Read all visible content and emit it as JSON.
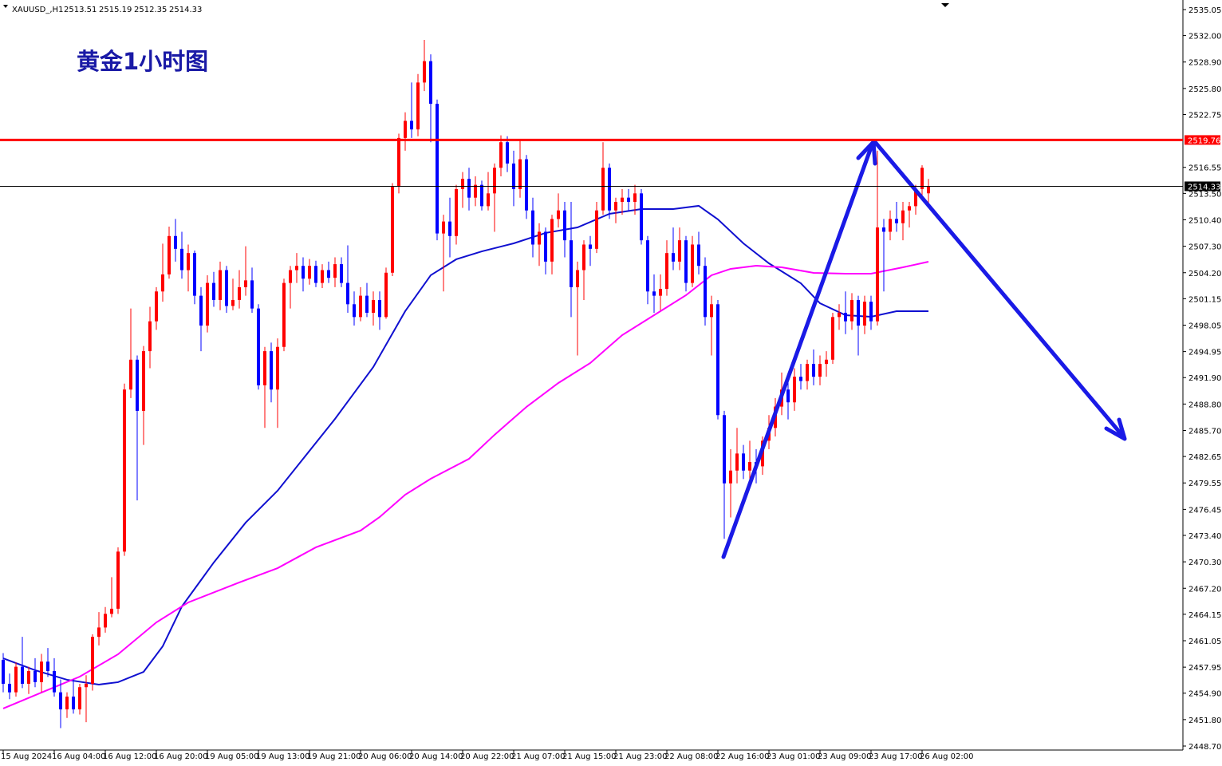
{
  "chart_data": {
    "type": "candlestick",
    "symbol": "XAUUSD_,H1",
    "ohlc_header": [
      2513.51,
      2515.19,
      2512.35,
      2514.33
    ],
    "title": "黄金1小时图",
    "up_color": "#ff0000",
    "down_color": "#0000ff",
    "ylim": [
      2448.7,
      2535.05
    ],
    "xlim": [
      -0.5,
      184.875
    ],
    "yticks": [
      {
        "value": 2535.05,
        "label": "2535.05"
      },
      {
        "value": 2532.0,
        "label": "2532.00"
      },
      {
        "value": 2528.9,
        "label": "2528.90"
      },
      {
        "value": 2525.8,
        "label": "2525.80"
      },
      {
        "value": 2522.75,
        "label": "2522.75"
      },
      {
        "value": 2516.55,
        "label": "2516.55"
      },
      {
        "value": 2513.5,
        "label": "2513.50"
      },
      {
        "value": 2510.4,
        "label": "2510.40"
      },
      {
        "value": 2507.3,
        "label": "2507.30"
      },
      {
        "value": 2504.2,
        "label": "2504.20"
      },
      {
        "value": 2501.15,
        "label": "2501.15"
      },
      {
        "value": 2498.05,
        "label": "2498.05"
      },
      {
        "value": 2494.95,
        "label": "2494.95"
      },
      {
        "value": 2491.9,
        "label": "2491.90"
      },
      {
        "value": 2488.8,
        "label": "2488.80"
      },
      {
        "value": 2485.7,
        "label": "2485.70"
      },
      {
        "value": 2482.65,
        "label": "2482.65"
      },
      {
        "value": 2479.55,
        "label": "2479.55"
      },
      {
        "value": 2476.45,
        "label": "2476.45"
      },
      {
        "value": 2473.4,
        "label": "2473.40"
      },
      {
        "value": 2470.3,
        "label": "2470.30"
      },
      {
        "value": 2467.2,
        "label": "2467.20"
      },
      {
        "value": 2464.15,
        "label": "2464.15"
      },
      {
        "value": 2461.05,
        "label": "2461.05"
      },
      {
        "value": 2457.95,
        "label": "2457.95"
      },
      {
        "value": 2454.9,
        "label": "2454.90"
      },
      {
        "value": 2451.8,
        "label": "2451.80"
      },
      {
        "value": 2448.7,
        "label": "2448.70"
      }
    ],
    "xticks": [
      {
        "value": 0,
        "label": "15 Aug 2024"
      },
      {
        "value": 8,
        "label": "16 Aug 04:00"
      },
      {
        "value": 16,
        "label": "16 Aug 12:00"
      },
      {
        "value": 24,
        "label": "16 Aug 20:00"
      },
      {
        "value": 32,
        "label": "19 Aug 05:00"
      },
      {
        "value": 40,
        "label": "19 Aug 13:00"
      },
      {
        "value": 48,
        "label": "19 Aug 21:00"
      },
      {
        "value": 56,
        "label": "20 Aug 06:00"
      },
      {
        "value": 64,
        "label": "20 Aug 14:00"
      },
      {
        "value": 72,
        "label": "20 Aug 22:00"
      },
      {
        "value": 80,
        "label": "21 Aug 07:00"
      },
      {
        "value": 88,
        "label": "21 Aug 15:00"
      },
      {
        "value": 96,
        "label": "21 Aug 23:00"
      },
      {
        "value": 104,
        "label": "22 Aug 08:00"
      },
      {
        "value": 112,
        "label": "22 Aug 16:00"
      },
      {
        "value": 120,
        "label": "23 Aug 01:00"
      },
      {
        "value": 128,
        "label": "23 Aug 09:00"
      },
      {
        "value": 136,
        "label": "23 Aug 17:00"
      },
      {
        "value": 144,
        "label": "26 Aug 02:00"
      }
    ],
    "levels": [
      {
        "value": 2519.76,
        "color": "#ff0000"
      },
      {
        "value": 2514.33,
        "color": "#000000"
      }
    ],
    "candles": [
      [
        2458.8,
        2459.6,
        2455,
        2456.0
      ],
      [
        2456.0,
        2457.2,
        2454.2,
        2455.0
      ],
      [
        2455.0,
        2458.5,
        2454.5,
        2458.0
      ],
      [
        2458.0,
        2461.5,
        2455.5,
        2456.0
      ],
      [
        2456.0,
        2458,
        2454.8,
        2457.5
      ],
      [
        2457.5,
        2459.0,
        2455.6,
        2456.2
      ],
      [
        2456.2,
        2459.5,
        2455.0,
        2458.6
      ],
      [
        2458.6,
        2460.2,
        2456.8,
        2457.5
      ],
      [
        2457.5,
        2459,
        2454.5,
        2455.0
      ],
      [
        2455.0,
        2456.5,
        2450.8,
        2453.0
      ],
      [
        2453.0,
        2455.0,
        2452.0,
        2454.5
      ],
      [
        2454.5,
        2456.5,
        2452.5,
        2453.0
      ],
      [
        2453.0,
        2456.0,
        2452.4,
        2455.6
      ],
      [
        2455.6,
        2457.0,
        2451.5,
        2456.0
      ],
      [
        2456.0,
        2461.8,
        2455.2,
        2461.5
      ],
      [
        2461.5,
        2464.4,
        2460.5,
        2462.6
      ],
      [
        2462.6,
        2465.0,
        2462,
        2464.2
      ],
      [
        2464.2,
        2468.5,
        2463.8,
        2464.8
      ],
      [
        2464.8,
        2472,
        2464.2,
        2471.5
      ],
      [
        2471.5,
        2491.2,
        2471,
        2490.5
      ],
      [
        2490.5,
        2500.0,
        2489.5,
        2494.0
      ],
      [
        2494.0,
        2494.5,
        2477.5,
        2488.0
      ],
      [
        2488.0,
        2495.6,
        2484,
        2495.0
      ],
      [
        2495.0,
        2500.2,
        2493,
        2498.5
      ],
      [
        2498.5,
        2502.5,
        2497.5,
        2502.0
      ],
      [
        2502.0,
        2507.6,
        2500.8,
        2504.0
      ],
      [
        2504.0,
        2509.6,
        2503.5,
        2508.5
      ],
      [
        2508.5,
        2510.5,
        2505.5,
        2507.0
      ],
      [
        2507.0,
        2509.0,
        2503.5,
        2504.5
      ],
      [
        2504.5,
        2507.5,
        2502,
        2506.5
      ],
      [
        2506.5,
        2506.8,
        2500.5,
        2501.5
      ],
      [
        2501.5,
        2502.5,
        2495.0,
        2498.0
      ],
      [
        2498.0,
        2503.9,
        2497.2,
        2503.0
      ],
      [
        2503.0,
        2504.3,
        2500.2,
        2501.0
      ],
      [
        2501.0,
        2505.5,
        2499.8,
        2504.5
      ],
      [
        2504.5,
        2505.0,
        2499.5,
        2500.3
      ],
      [
        2500.3,
        2503.5,
        2499.8,
        2501.0
      ],
      [
        2501.0,
        2504.5,
        2500.0,
        2502.5
      ],
      [
        2502.5,
        2507.3,
        2501.5,
        2503.3
      ],
      [
        2503.3,
        2504.8,
        2499.5,
        2500.0
      ],
      [
        2500.0,
        2500.5,
        2490.5,
        2491.0
      ],
      [
        2491.0,
        2495.5,
        2486.0,
        2495.0
      ],
      [
        2495.0,
        2496.0,
        2489,
        2490.5
      ],
      [
        2490.5,
        2496.5,
        2486.0,
        2495.5
      ],
      [
        2495.5,
        2503.5,
        2495,
        2503.0
      ],
      [
        2503.0,
        2505.0,
        2500.0,
        2504.5
      ],
      [
        2504.5,
        2506.5,
        2503,
        2505.0
      ],
      [
        2505.0,
        2506.0,
        2502.0,
        2503.5
      ],
      [
        2503.5,
        2505.8,
        2502.8,
        2505.0
      ],
      [
        2505.0,
        2505.6,
        2502.5,
        2503.0
      ],
      [
        2503.0,
        2505.2,
        2502.4,
        2504.5
      ],
      [
        2504.5,
        2505.5,
        2503.0,
        2503.6
      ],
      [
        2503.6,
        2506.0,
        2502.5,
        2505.2
      ],
      [
        2505.2,
        2506.0,
        2502.5,
        2503.0
      ],
      [
        2503.0,
        2507.4,
        2499.5,
        2500.5
      ],
      [
        2500.5,
        2502.0,
        2498.0,
        2499.0
      ],
      [
        2499.0,
        2502.5,
        2498.5,
        2501.5
      ],
      [
        2501.5,
        2503.0,
        2499.0,
        2499.5
      ],
      [
        2499.5,
        2502.0,
        2498.0,
        2501.0
      ],
      [
        2501.0,
        2502.0,
        2497.5,
        2499.0
      ],
      [
        2499.0,
        2504.8,
        2498.8,
        2504.2
      ],
      [
        2504.2,
        2514.7,
        2503.8,
        2514.3
      ],
      [
        2514.3,
        2520.5,
        2513.5,
        2520.0
      ],
      [
        2520.0,
        2523.0,
        2518.5,
        2522.0
      ],
      [
        2522.0,
        2526.5,
        2520.0,
        2521.0
      ],
      [
        2521.0,
        2527.5,
        2520.2,
        2526.5
      ],
      [
        2526.5,
        2531.5,
        2525.5,
        2529.0
      ],
      [
        2529.0,
        2529.8,
        2519.5,
        2524.0
      ],
      [
        2524.0,
        2524.5,
        2508.0,
        2508.8
      ],
      [
        2508.8,
        2511,
        2502.0,
        2510.2
      ],
      [
        2510.2,
        2513.0,
        2506.0,
        2508.5
      ],
      [
        2508.5,
        2514.5,
        2507.5,
        2514.0
      ],
      [
        2514.0,
        2516.0,
        2511.8,
        2515.2
      ],
      [
        2515.2,
        2516.5,
        2511.5,
        2513.0
      ],
      [
        2513.0,
        2515.5,
        2512.0,
        2514.5
      ],
      [
        2514.5,
        2515.0,
        2511.5,
        2512.0
      ],
      [
        2512.0,
        2516.0,
        2511.5,
        2513.5
      ],
      [
        2513.5,
        2517.0,
        2509.0,
        2516.5
      ],
      [
        2516.5,
        2520.3,
        2515.5,
        2519.5
      ],
      [
        2519.5,
        2520.2,
        2516.0,
        2517.0
      ],
      [
        2517.0,
        2518.5,
        2512.0,
        2514.0
      ],
      [
        2514.0,
        2519.8,
        2513.0,
        2517.5
      ],
      [
        2517.5,
        2518.0,
        2510.5,
        2511.5
      ],
      [
        2511.5,
        2513.0,
        2506.0,
        2507.5
      ],
      [
        2507.5,
        2510.0,
        2505.0,
        2509.0
      ],
      [
        2509.0,
        2509.5,
        2504.0,
        2505.5
      ],
      [
        2505.5,
        2511.0,
        2504.0,
        2510.5
      ],
      [
        2510.5,
        2513.5,
        2509.5,
        2511.5
      ],
      [
        2511.5,
        2512.5,
        2506,
        2508.0
      ],
      [
        2508.0,
        2512.5,
        2499.0,
        2502.5
      ],
      [
        2502.5,
        2505.5,
        2494.5,
        2504.5
      ],
      [
        2504.5,
        2508.0,
        2501.0,
        2507.5
      ],
      [
        2507.5,
        2508.5,
        2505.0,
        2507.0
      ],
      [
        2507.0,
        2512.5,
        2506.5,
        2511.5
      ],
      [
        2511.5,
        2519.5,
        2511.0,
        2516.5
      ],
      [
        2516.5,
        2517.0,
        2510.5,
        2511.5
      ],
      [
        2511.5,
        2513.0,
        2510.0,
        2512.5
      ],
      [
        2512.5,
        2514.0,
        2511.0,
        2513.0
      ],
      [
        2513.0,
        2514.0,
        2511.5,
        2512.5
      ],
      [
        2512.5,
        2514.5,
        2511.0,
        2513.5
      ],
      [
        2513.5,
        2514.0,
        2507.5,
        2508.0
      ],
      [
        2508.0,
        2508.5,
        2500.5,
        2502.0
      ],
      [
        2502.0,
        2504.0,
        2499.5,
        2501.5
      ],
      [
        2501.5,
        2504.0,
        2499.8,
        2502.3
      ],
      [
        2502.3,
        2508.0,
        2501.5,
        2506.5
      ],
      [
        2506.5,
        2509.5,
        2504.5,
        2505.5
      ],
      [
        2505.5,
        2509.5,
        2504.5,
        2508.0
      ],
      [
        2508.0,
        2508.5,
        2502.0,
        2503.0
      ],
      [
        2503.0,
        2508.5,
        2502.5,
        2507.5
      ],
      [
        2507.5,
        2509.0,
        2504.0,
        2505.0
      ],
      [
        2505.0,
        2506.0,
        2498.0,
        2499.0
      ],
      [
        2499.0,
        2501.5,
        2494.5,
        2500.5
      ],
      [
        2500.5,
        2501.0,
        2487.0,
        2487.5
      ],
      [
        2487.5,
        2488.0,
        2473.0,
        2479.5
      ],
      [
        2479.5,
        2483.5,
        2475.5,
        2481.0
      ],
      [
        2481.0,
        2486.0,
        2479.5,
        2483.0
      ],
      [
        2483.0,
        2484.0,
        2480.0,
        2481.0
      ],
      [
        2481.0,
        2484.5,
        2479.0,
        2482.0
      ],
      [
        2482.0,
        2483.5,
        2479.5,
        2481.5
      ],
      [
        2481.5,
        2485.0,
        2480.5,
        2484.5
      ],
      [
        2484.5,
        2487.5,
        2483.5,
        2486.0
      ],
      [
        2486.0,
        2489.5,
        2485.0,
        2488.5
      ],
      [
        2488.5,
        2492.5,
        2487.5,
        2490.5
      ],
      [
        2490.5,
        2492.0,
        2487.0,
        2489.0
      ],
      [
        2489.0,
        2493.0,
        2488.0,
        2492.0
      ],
      [
        2492.0,
        2493.5,
        2490.5,
        2491.5
      ],
      [
        2491.5,
        2494.0,
        2490.5,
        2493.5
      ],
      [
        2493.5,
        2495.2,
        2491.0,
        2492.0
      ],
      [
        2492.0,
        2494.5,
        2491.0,
        2493.5
      ],
      [
        2493.5,
        2495.0,
        2492.0,
        2494.0
      ],
      [
        2494.0,
        2499.5,
        2493.5,
        2499.0
      ],
      [
        2499.0,
        2500.5,
        2497.5,
        2499.5
      ],
      [
        2499.5,
        2502.0,
        2497.0,
        2498.5
      ],
      [
        2498.5,
        2501.8,
        2497.5,
        2501.0
      ],
      [
        2501.0,
        2501.5,
        2494.5,
        2498.0
      ],
      [
        2498.0,
        2501.5,
        2497.0,
        2500.8
      ],
      [
        2500.8,
        2501.5,
        2497.5,
        2498.5
      ],
      [
        2498.5,
        2518.5,
        2498.0,
        2509.5
      ],
      [
        2509.5,
        2510.5,
        2502.0,
        2509.0
      ],
      [
        2509.0,
        2511.5,
        2508.0,
        2510.5
      ],
      [
        2510.5,
        2512.5,
        2509.0,
        2510.0
      ],
      [
        2510.0,
        2512.5,
        2508.0,
        2511.5
      ],
      [
        2511.5,
        2512.5,
        2509.5,
        2512.0
      ],
      [
        2512.0,
        2514.5,
        2511.0,
        2514.0
      ],
      [
        2514.0,
        2516.8,
        2513.3,
        2516.5
      ],
      [
        2513.51,
        2515.19,
        2512.35,
        2514.33
      ]
    ],
    "series": [
      {
        "color": "#1010d0",
        "x": [
          0,
          5,
          10,
          15,
          18,
          22,
          25,
          28,
          33,
          38,
          43,
          47,
          52,
          58,
          63,
          67,
          71,
          75,
          80,
          85,
          90,
          95,
          100,
          105,
          109,
          112,
          116,
          120,
          125,
          128,
          132,
          136,
          140,
          145
        ],
        "values": [
          2458.99,
          2457.59,
          2456.47,
          2455.91,
          2456.19,
          2457.4,
          2460.4,
          2465.07,
          2470.22,
          2474.9,
          2478.64,
          2482.38,
          2487.06,
          2493.14,
          2499.69,
          2503.9,
          2505.77,
          2506.7,
          2507.64,
          2508.86,
          2509.51,
          2511.1,
          2511.66,
          2511.66,
          2512.04,
          2510.45,
          2507.64,
          2505.3,
          2502.96,
          2500.62,
          2499.22,
          2499.03,
          2499.69,
          2499.69
        ]
      },
      {
        "color": "#ff00ff",
        "x": [
          0,
          6,
          12,
          18,
          24,
          29,
          37,
          43,
          49,
          56,
          59,
          63,
          67,
          73,
          77,
          82,
          87,
          92,
          97,
          102,
          107,
          111,
          114,
          118,
          122,
          127,
          132,
          136,
          141,
          145
        ],
        "values": [
          2453.1,
          2454.97,
          2456.84,
          2459.46,
          2463.2,
          2465.54,
          2467.88,
          2469.56,
          2472.0,
          2473.96,
          2475.55,
          2478.17,
          2480.04,
          2482.38,
          2485.19,
          2488.46,
          2491.27,
          2493.61,
          2496.88,
          2499.22,
          2501.56,
          2503.9,
          2504.65,
          2505.02,
          2504.83,
          2504.18,
          2504.08,
          2504.08,
          2504.83,
          2505.49
        ]
      }
    ]
  }
}
